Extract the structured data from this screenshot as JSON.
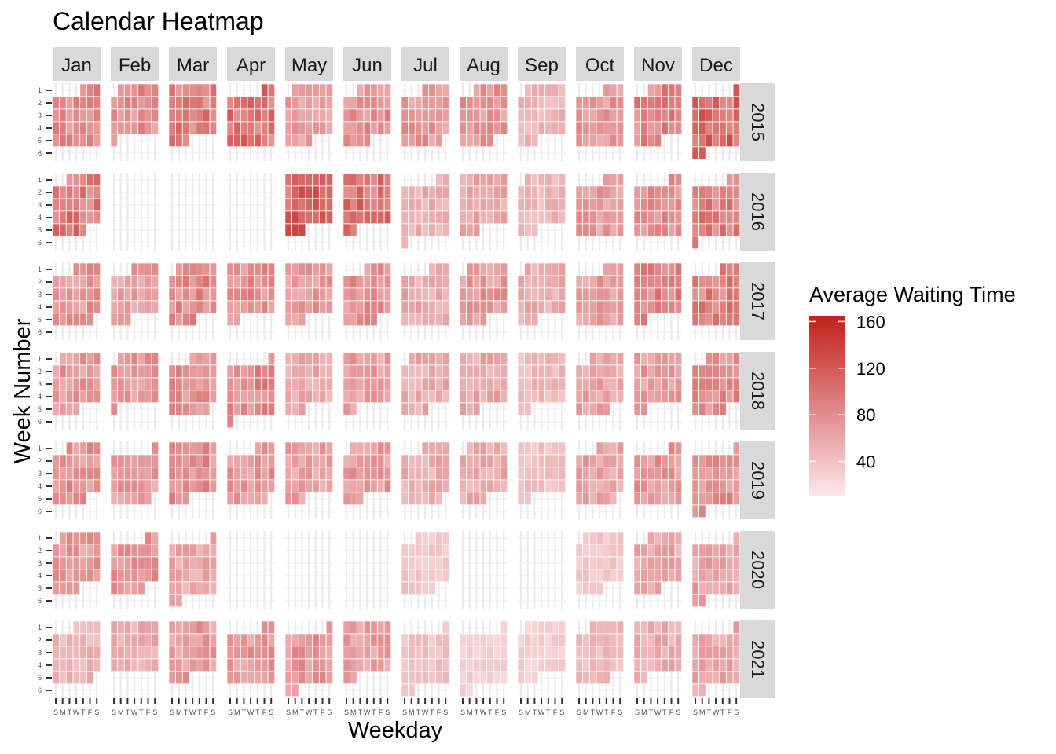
{
  "chart_data": {
    "type": "heatmap",
    "title": "Calendar Heatmap",
    "xlabel": "Weekday",
    "ylabel": "Week Number",
    "months": [
      "Jan",
      "Feb",
      "Mar",
      "Apr",
      "May",
      "Jun",
      "Jul",
      "Aug",
      "Sep",
      "Oct",
      "Nov",
      "Dec"
    ],
    "years": [
      "2015",
      "2016",
      "2017",
      "2018",
      "2019",
      "2020",
      "2021"
    ],
    "weekday_labels": [
      "S",
      "M",
      "T",
      "W",
      "T",
      "F",
      "S"
    ],
    "week_labels": [
      "1",
      "2",
      "3",
      "4",
      "5",
      "6"
    ],
    "legend": {
      "title": "Average Waiting Time",
      "breaks": [
        40,
        80,
        120,
        160
      ],
      "labels": [
        "40",
        "80",
        "120",
        "160"
      ],
      "range": [
        10,
        165
      ],
      "low_color": "#fde8ec",
      "high_color": "#c0201a"
    },
    "panel_mean_values": [
      [
        80,
        78,
        92,
        98,
        65,
        75,
        72,
        72,
        50,
        70,
        85,
        110
      ],
      [
        95,
        null,
        null,
        null,
        110,
        100,
        55,
        60,
        48,
        68,
        75,
        90
      ],
      [
        72,
        68,
        82,
        80,
        70,
        75,
        58,
        70,
        55,
        68,
        85,
        90
      ],
      [
        72,
        70,
        75,
        82,
        58,
        65,
        58,
        60,
        45,
        62,
        68,
        80
      ],
      [
        75,
        70,
        78,
        72,
        65,
        68,
        55,
        58,
        40,
        62,
        72,
        78
      ],
      [
        70,
        75,
        60,
        null,
        null,
        null,
        35,
        null,
        null,
        35,
        60,
        65
      ],
      [
        50,
        55,
        68,
        70,
        72,
        65,
        40,
        30,
        30,
        45,
        55,
        60
      ]
    ]
  }
}
